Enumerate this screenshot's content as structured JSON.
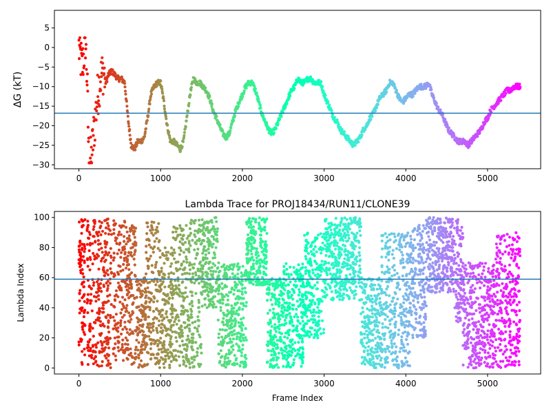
{
  "chart_data": [
    {
      "type": "scatter",
      "title": "",
      "ylabel": "ΔG (kT)",
      "xlabel": "",
      "xlim": [
        -300,
        5650
      ],
      "ylim": [
        -31,
        9.5
      ],
      "xticks": [
        0,
        1000,
        2000,
        3000,
        4000,
        5000
      ],
      "yticks": [
        5,
        0,
        -5,
        -10,
        -15,
        -20,
        -25,
        -30
      ],
      "xtick_labels": [
        "0",
        "1000",
        "2000",
        "3000",
        "4000",
        "5000"
      ],
      "ytick_labels": [
        "5",
        "0",
        "−5",
        "−10",
        "−15",
        "−20",
        "−25",
        "−30"
      ],
      "hline": -16.8,
      "hline_color": "#1f77b4",
      "colormap": "rainbow (red at start → violet at end)",
      "point_color_by": "frame index",
      "trace_x": [
        0,
        40,
        60,
        80,
        100,
        120,
        150,
        180,
        200,
        230,
        260,
        300,
        330,
        360,
        400,
        440,
        480,
        520,
        560,
        600,
        640,
        680,
        720,
        760,
        800,
        840,
        880,
        920,
        960,
        1000,
        1040,
        1080,
        1120,
        1160,
        1200,
        1240,
        1280,
        1320,
        1360,
        1400,
        1440,
        1480,
        1520,
        1560,
        1600,
        1640,
        1680,
        1720,
        1760,
        1800,
        1840,
        1880,
        1920,
        1960,
        2000,
        2040,
        2080,
        2120,
        2160,
        2200,
        2240,
        2280,
        2320,
        2360,
        2400,
        2440,
        2480,
        2520,
        2560,
        2600,
        2640,
        2680,
        2720,
        2760,
        2800,
        2840,
        2880,
        2920,
        2960,
        3000,
        3040,
        3080,
        3120,
        3160,
        3200,
        3240,
        3280,
        3320,
        3360,
        3400,
        3440,
        3480,
        3520,
        3560,
        3600,
        3640,
        3680,
        3720,
        3760,
        3800,
        3840,
        3880,
        3920,
        3960,
        4000,
        4040,
        4080,
        4120,
        4160,
        4200,
        4240,
        4280,
        4320,
        4360,
        4400,
        4440,
        4480,
        4520,
        4560,
        4600,
        4640,
        4680,
        4720,
        4760,
        4800,
        4840,
        4880,
        4920,
        4960,
        5000,
        5040,
        5080,
        5120,
        5160,
        5200,
        5240,
        5280,
        5320,
        5360,
        5400
      ],
      "trace_y": [
        0,
        -5,
        -2,
        2,
        -8,
        -27,
        -29,
        -22,
        -18,
        -12,
        -8,
        -6,
        -9,
        -7,
        -6,
        -7,
        -8,
        -8,
        -9,
        -18,
        -25,
        -26,
        -24,
        -24,
        -23,
        -18,
        -12,
        -10,
        -9,
        -9,
        -14,
        -20,
        -24,
        -24,
        -25,
        -26,
        -24,
        -18,
        -12,
        -8,
        -9,
        -9,
        -10,
        -11,
        -13,
        -16,
        -18,
        -20,
        -22,
        -23,
        -22,
        -19,
        -16,
        -14,
        -12,
        -10,
        -9,
        -9,
        -11,
        -14,
        -17,
        -19,
        -21,
        -22,
        -21,
        -19,
        -17,
        -15,
        -13,
        -11,
        -10,
        -8,
        -9,
        -9,
        -8,
        -8,
        -9,
        -9,
        -9,
        -12,
        -14,
        -16,
        -18,
        -19,
        -21,
        -22,
        -23,
        -24,
        -25,
        -24,
        -23,
        -21,
        -20,
        -18,
        -17,
        -15,
        -13,
        -12,
        -11,
        -9,
        -9,
        -11,
        -13,
        -14,
        -13,
        -12,
        -12,
        -11,
        -10,
        -10,
        -10,
        -9,
        -12,
        -14,
        -16,
        -17,
        -19,
        -21,
        -22,
        -23,
        -24,
        -24,
        -24,
        -25,
        -24,
        -23,
        -22,
        -21,
        -19,
        -18,
        -16,
        -15,
        -14,
        -13,
        -12,
        -11,
        -11,
        -10,
        -10,
        -10
      ],
      "early_scatter_note": "frames 0–300 widely scattered between about -30 and 2"
    },
    {
      "type": "scatter",
      "title": "Lambda Trace for PROJ18434/RUN11/CLONE39",
      "xlabel": "Frame Index",
      "ylabel": "Lambda Index",
      "xlim": [
        -300,
        5650
      ],
      "ylim": [
        -4,
        104
      ],
      "xticks": [
        0,
        1000,
        2000,
        3000,
        4000,
        5000
      ],
      "yticks": [
        0,
        20,
        40,
        60,
        80,
        100
      ],
      "xtick_labels": [
        "0",
        "1000",
        "2000",
        "3000",
        "4000",
        "5000"
      ],
      "ytick_labels": [
        "0",
        "20",
        "40",
        "60",
        "80",
        "100"
      ],
      "hline": 59,
      "hline_color": "#1f77b4",
      "colormap": "rainbow (red at start → violet at end)",
      "point_color_by": "frame index",
      "bands": [
        {
          "x": [
            0,
            20
          ],
          "y": [
            5,
            97
          ]
        },
        {
          "x": [
            20,
            80
          ],
          "y": [
            2,
            99
          ]
        },
        {
          "x": [
            100,
            400
          ],
          "y": [
            0,
            100
          ]
        },
        {
          "x": [
            420,
            600
          ],
          "y": [
            5,
            99
          ]
        },
        {
          "x": [
            600,
            700
          ],
          "y": [
            0,
            95
          ]
        },
        {
          "x": [
            700,
            820
          ],
          "y": [
            0,
            60
          ]
        },
        {
          "x": [
            820,
            1000
          ],
          "y": [
            0,
            99
          ]
        },
        {
          "x": [
            1000,
            1150
          ],
          "y": [
            0,
            80
          ]
        },
        {
          "x": [
            1150,
            1350
          ],
          "y": [
            0,
            95
          ]
        },
        {
          "x": [
            1350,
            1500
          ],
          "y": [
            0,
            99
          ]
        },
        {
          "x": [
            1500,
            1700
          ],
          "y": [
            40,
            100
          ]
        },
        {
          "x": [
            1700,
            1850
          ],
          "y": [
            0,
            70
          ]
        },
        {
          "x": [
            1850,
            2050
          ],
          "y": [
            0,
            70
          ]
        },
        {
          "x": [
            2050,
            2300
          ],
          "y": [
            55,
            100
          ]
        },
        {
          "x": [
            2300,
            2500
          ],
          "y": [
            0,
            60
          ]
        },
        {
          "x": [
            2500,
            2750
          ],
          "y": [
            0,
            70
          ]
        },
        {
          "x": [
            2750,
            3000
          ],
          "y": [
            20,
            90
          ]
        },
        {
          "x": [
            3000,
            3450
          ],
          "y": [
            45,
            100
          ]
        },
        {
          "x": [
            3450,
            3700
          ],
          "y": [
            0,
            60
          ]
        },
        {
          "x": [
            3700,
            4050
          ],
          "y": [
            0,
            90
          ]
        },
        {
          "x": [
            4050,
            4250
          ],
          "y": [
            20,
            95
          ]
        },
        {
          "x": [
            4250,
            4600
          ],
          "y": [
            50,
            100
          ]
        },
        {
          "x": [
            4600,
            4700
          ],
          "y": [
            30,
            99
          ]
        },
        {
          "x": [
            4700,
            5100
          ],
          "y": [
            0,
            70
          ]
        },
        {
          "x": [
            5100,
            5400
          ],
          "y": [
            0,
            90
          ]
        }
      ]
    }
  ]
}
